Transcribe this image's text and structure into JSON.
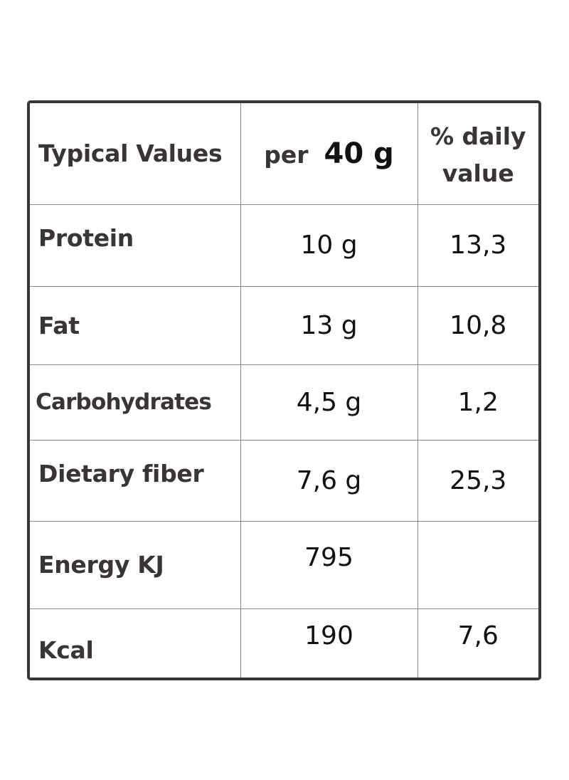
{
  "header": {
    "col1": "Typical Values",
    "col2_prefix": "per",
    "col2_amount": "40 g",
    "col3_line1": "% daily",
    "col3_line2": "value"
  },
  "rows": [
    {
      "name": "Protein",
      "per_amount": "10 g",
      "daily_value": "13,3"
    },
    {
      "name": "Fat",
      "per_amount": "13 g",
      "daily_value": "10,8"
    },
    {
      "name": "Carbohydrates",
      "per_amount": "4,5 g",
      "daily_value": "1,2"
    },
    {
      "name": "Dietary fiber",
      "per_amount": "7,6 g",
      "daily_value": "25,3"
    },
    {
      "name": "Energy KJ",
      "per_amount": "795",
      "daily_value": ""
    },
    {
      "name": "Kcal",
      "per_amount": "190",
      "daily_value": "7,6"
    }
  ]
}
